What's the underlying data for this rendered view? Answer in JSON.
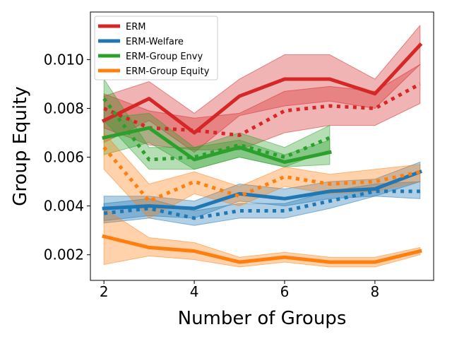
{
  "chart_data": {
    "type": "line",
    "title": "",
    "xlabel": "Number of Groups",
    "ylabel": "Group Equity",
    "xlim": [
      1.7,
      9.3
    ],
    "ylim": [
      0.00095,
      0.01195
    ],
    "xticks": [
      2,
      4,
      6,
      8
    ],
    "xtick_labels": [
      "2",
      "4",
      "6",
      "8"
    ],
    "yticks": [
      0.002,
      0.004,
      0.006,
      0.008,
      0.01
    ],
    "ytick_labels": [
      "0.002",
      "0.004",
      "0.006",
      "0.008",
      "0.010"
    ],
    "grid": false,
    "legend_position": "top-left",
    "series": [
      {
        "name": "ERM",
        "color": "#d62728",
        "style": "solid",
        "x": [
          2,
          3,
          4,
          5,
          6,
          7,
          8,
          9
        ],
        "values": [
          0.0075,
          0.0084,
          0.007,
          0.0085,
          0.0092,
          0.0092,
          0.0086,
          0.0106
        ],
        "lower": [
          0.0066,
          0.0075,
          0.0062,
          0.0077,
          0.0081,
          0.0083,
          0.008,
          0.0098
        ],
        "upper": [
          0.0085,
          0.0091,
          0.0078,
          0.0092,
          0.0102,
          0.0102,
          0.0092,
          0.0114
        ]
      },
      {
        "name": "",
        "color": "#d62728",
        "style": "dotted",
        "x": [
          2,
          3,
          4,
          5,
          6,
          7,
          8,
          9
        ],
        "values": [
          0.008,
          0.0072,
          0.0071,
          0.0069,
          0.0079,
          0.0081,
          0.008,
          0.009
        ],
        "lower": [
          0.0072,
          0.0065,
          0.0063,
          0.0063,
          0.007,
          0.0073,
          0.0073,
          0.0082
        ],
        "upper": [
          0.0086,
          0.0079,
          0.0076,
          0.0078,
          0.0087,
          0.0089,
          0.0087,
          0.0098
        ]
      },
      {
        "name": "ERM-Welfare",
        "color": "#1f77b4",
        "style": "solid",
        "x": [
          2,
          3,
          4,
          5,
          6,
          7,
          8,
          9
        ],
        "values": [
          0.0039,
          0.004,
          0.0039,
          0.0045,
          0.0043,
          0.0046,
          0.0047,
          0.0054
        ],
        "lower": [
          0.0034,
          0.0036,
          0.0035,
          0.0042,
          0.004,
          0.0043,
          0.0044,
          0.005
        ],
        "upper": [
          0.0044,
          0.0044,
          0.0042,
          0.0049,
          0.0047,
          0.005,
          0.0051,
          0.0058
        ]
      },
      {
        "name": "",
        "color": "#1f77b4",
        "style": "dotted",
        "x": [
          2,
          3,
          4,
          5,
          6,
          7,
          8,
          9
        ],
        "values": [
          0.0037,
          0.0039,
          0.0035,
          0.0038,
          0.0038,
          0.0042,
          0.0046,
          0.0046
        ],
        "lower": [
          0.0033,
          0.0035,
          0.0032,
          0.0035,
          0.0035,
          0.0039,
          0.0044,
          0.0043
        ],
        "upper": [
          0.0041,
          0.0043,
          0.0038,
          0.0041,
          0.0041,
          0.0046,
          0.0049,
          0.005
        ]
      },
      {
        "name": "ERM-Group Envy",
        "color": "#2ca02c",
        "style": "solid",
        "x": [
          2,
          3,
          4,
          5,
          6,
          7
        ],
        "values": [
          0.0068,
          0.0072,
          0.0059,
          0.0064,
          0.0058,
          0.0062
        ],
        "lower": [
          0.0061,
          0.0066,
          0.0055,
          0.006,
          0.0056,
          0.0057
        ],
        "upper": [
          0.0076,
          0.0078,
          0.0064,
          0.0067,
          0.0061,
          0.0067
        ]
      },
      {
        "name": "",
        "color": "#2ca02c",
        "style": "dotted",
        "x": [
          2,
          3,
          4,
          5,
          6,
          7
        ],
        "values": [
          0.0084,
          0.0059,
          0.006,
          0.0065,
          0.006,
          0.0068
        ],
        "lower": [
          0.0075,
          0.0055,
          0.0055,
          0.006,
          0.0056,
          0.0063
        ],
        "upper": [
          0.0092,
          0.0064,
          0.0064,
          0.007,
          0.0064,
          0.0073
        ]
      },
      {
        "name": "ERM-Group Equity",
        "color": "#ff7f0e",
        "style": "solid",
        "x": [
          2,
          3,
          4,
          5,
          6,
          7,
          8,
          9
        ],
        "values": [
          0.00275,
          0.0023,
          0.00215,
          0.0017,
          0.0019,
          0.0017,
          0.0017,
          0.00215
        ],
        "lower": [
          0.0016,
          0.00195,
          0.0018,
          0.0015,
          0.0017,
          0.0015,
          0.0015,
          0.002
        ],
        "upper": [
          0.0039,
          0.0027,
          0.0025,
          0.0019,
          0.0021,
          0.0019,
          0.0019,
          0.0023
        ]
      },
      {
        "name": "",
        "color": "#ff7f0e",
        "style": "dotted",
        "x": [
          2,
          3,
          4,
          5,
          6,
          7,
          8,
          9
        ],
        "values": [
          0.0064,
          0.0042,
          0.005,
          0.0044,
          0.0052,
          0.0049,
          0.005,
          0.0054
        ],
        "lower": [
          0.0055,
          0.0035,
          0.0045,
          0.004,
          0.0048,
          0.0045,
          0.0046,
          0.005
        ],
        "upper": [
          0.007,
          0.0049,
          0.0054,
          0.0048,
          0.0056,
          0.0053,
          0.0055,
          0.0057
        ]
      }
    ]
  }
}
